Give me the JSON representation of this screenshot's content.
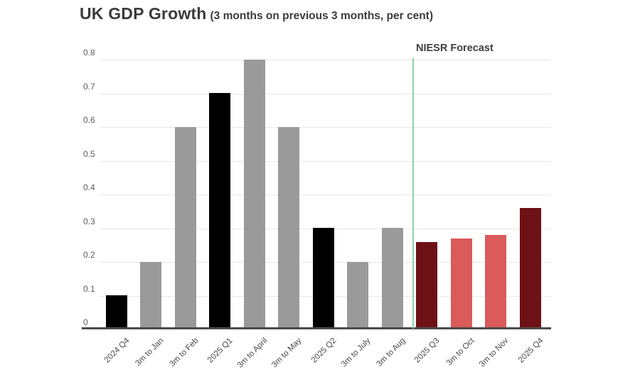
{
  "title": "UK GDP Growth",
  "subtitle": "(3 months on previous 3 months, per cent)",
  "annotation": {
    "forecast_label": "NIESR Forecast"
  },
  "colors": {
    "black": "#000000",
    "gray": "#9a9a9a",
    "darkred": "#6d1117",
    "red": "#db5a5a",
    "forecast_line": "#8ecfad",
    "gridline": "#e7e7e7",
    "axis": "#4b4b4b",
    "title_text": "#3b3b3b",
    "tick_text": "#5d5d5d"
  },
  "chart_data": {
    "type": "bar",
    "title": "UK GDP Growth",
    "subtitle": "(3 months on previous 3 months, per cent)",
    "categories": [
      "2024 Q4",
      "3m to Jan",
      "3m to Feb",
      "2025 Q1",
      "3m to April",
      "3m to May",
      "2025 Q2",
      "3m to July",
      "3m to Aug",
      "2025 Q3",
      "3m to Oct",
      "3m to Nov",
      "2025 Q4"
    ],
    "values": [
      0.1,
      0.2,
      0.6,
      0.7,
      0.8,
      0.6,
      0.3,
      0.2,
      0.3,
      0.26,
      0.27,
      0.28,
      0.36
    ],
    "bar_colors": [
      "black",
      "gray",
      "gray",
      "black",
      "gray",
      "gray",
      "black",
      "gray",
      "gray",
      "darkred",
      "red",
      "red",
      "darkred"
    ],
    "xlabel": "",
    "ylabel": "",
    "ylim": [
      0,
      0.8
    ],
    "yticks": [
      0,
      0.1,
      0.2,
      0.3,
      0.4,
      0.5,
      0.6,
      0.7,
      0.8
    ],
    "grid": true,
    "legend": "none",
    "forecast_divider_after_index": 8,
    "forecast_label": "NIESR Forecast"
  }
}
